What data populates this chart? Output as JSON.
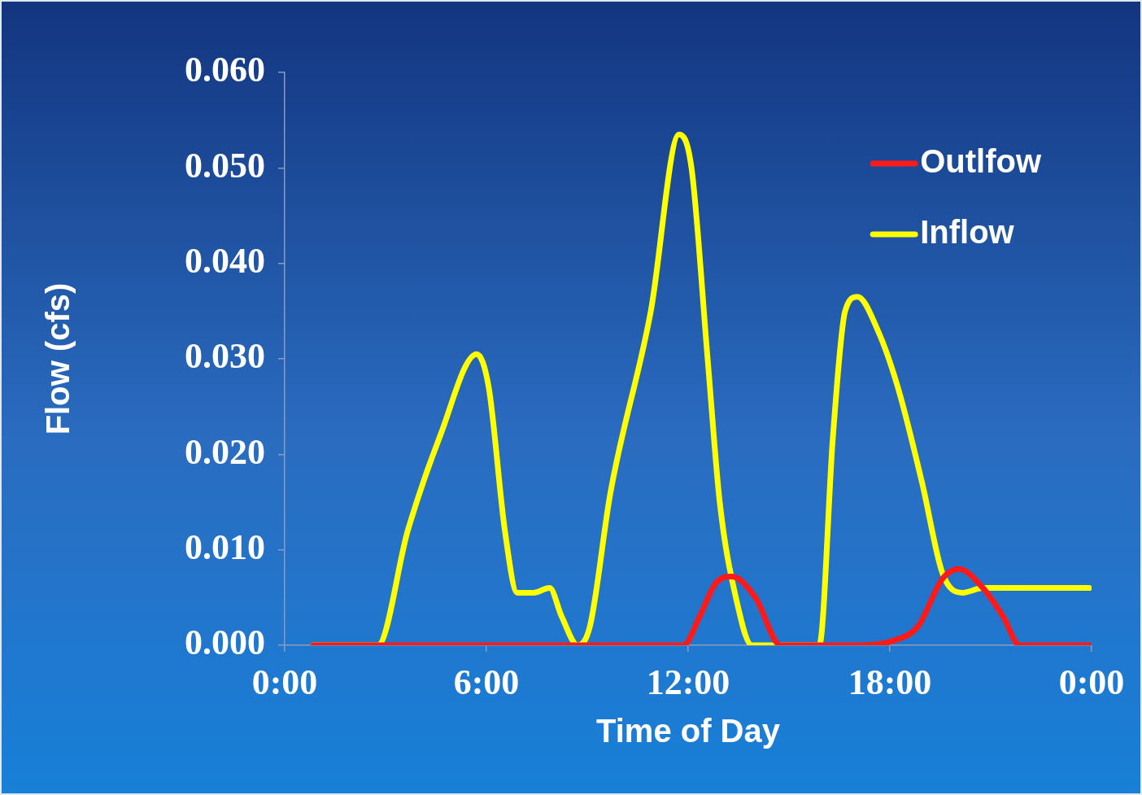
{
  "chart_data": {
    "type": "line",
    "xlabel": "Time of Day",
    "ylabel": "Flow (cfs)",
    "xlim": [
      0,
      24
    ],
    "xticks": [
      {
        "value": 0,
        "label": "0:00"
      },
      {
        "value": 6,
        "label": "6:00"
      },
      {
        "value": 12,
        "label": "12:00"
      },
      {
        "value": 18,
        "label": "18:00"
      },
      {
        "value": 24,
        "label": "0:00"
      }
    ],
    "ylim": [
      0,
      0.06
    ],
    "yticks": [
      {
        "value": 0,
        "label": "0.000"
      },
      {
        "value": 0.01,
        "label": "0.010"
      },
      {
        "value": 0.02,
        "label": "0.020"
      },
      {
        "value": 0.03,
        "label": "0.030"
      },
      {
        "value": 0.04,
        "label": "0.040"
      },
      {
        "value": 0.05,
        "label": "0.050"
      },
      {
        "value": 0.06,
        "label": "0.060"
      }
    ],
    "grid": false,
    "legend": "top right",
    "marker": "none",
    "line_style": "solid",
    "series": [
      {
        "name": "Outlfow",
        "color": "#ff1a1a",
        "x": [
          0.84,
          10.89,
          11.86,
          12.34,
          12.82,
          13.3,
          14.0,
          14.75,
          15.71,
          17.16,
          18.12,
          18.84,
          19.57,
          20.05,
          20.77,
          21.37,
          21.86,
          23.93
        ],
        "values": [
          0,
          0,
          0,
          0.003,
          0.0065,
          0.0072,
          0.005,
          0,
          0,
          0,
          0.0005,
          0.002,
          0.007,
          0.008,
          0.006,
          0.003,
          0,
          0
        ]
      },
      {
        "name": "Inflow",
        "color": "#ffff00",
        "x": [
          0.84,
          1.86,
          2.77,
          3.66,
          4.63,
          5.71,
          6.07,
          6.55,
          6.92,
          7.4,
          7.88,
          8.24,
          8.72,
          9.08,
          9.69,
          10.89,
          11.73,
          12.1,
          12.58,
          12.94,
          13.42,
          13.9,
          14.75,
          15.35,
          15.9,
          16.31,
          16.67,
          17.04,
          17.64,
          18.24,
          18.96,
          19.57,
          20.17,
          20.77,
          21.98,
          23.93
        ],
        "values": [
          0,
          0,
          0,
          0.012,
          0.022,
          0.0305,
          0.027,
          0.012,
          0.0055,
          0.0055,
          0.006,
          0.003,
          0,
          0.002,
          0.016,
          0.035,
          0.0535,
          0.05,
          0.03,
          0.015,
          0.005,
          0,
          0,
          0,
          0,
          0.022,
          0.035,
          0.0365,
          0.033,
          0.027,
          0.017,
          0.0075,
          0.0055,
          0.006,
          0.006,
          0.006
        ]
      }
    ]
  }
}
